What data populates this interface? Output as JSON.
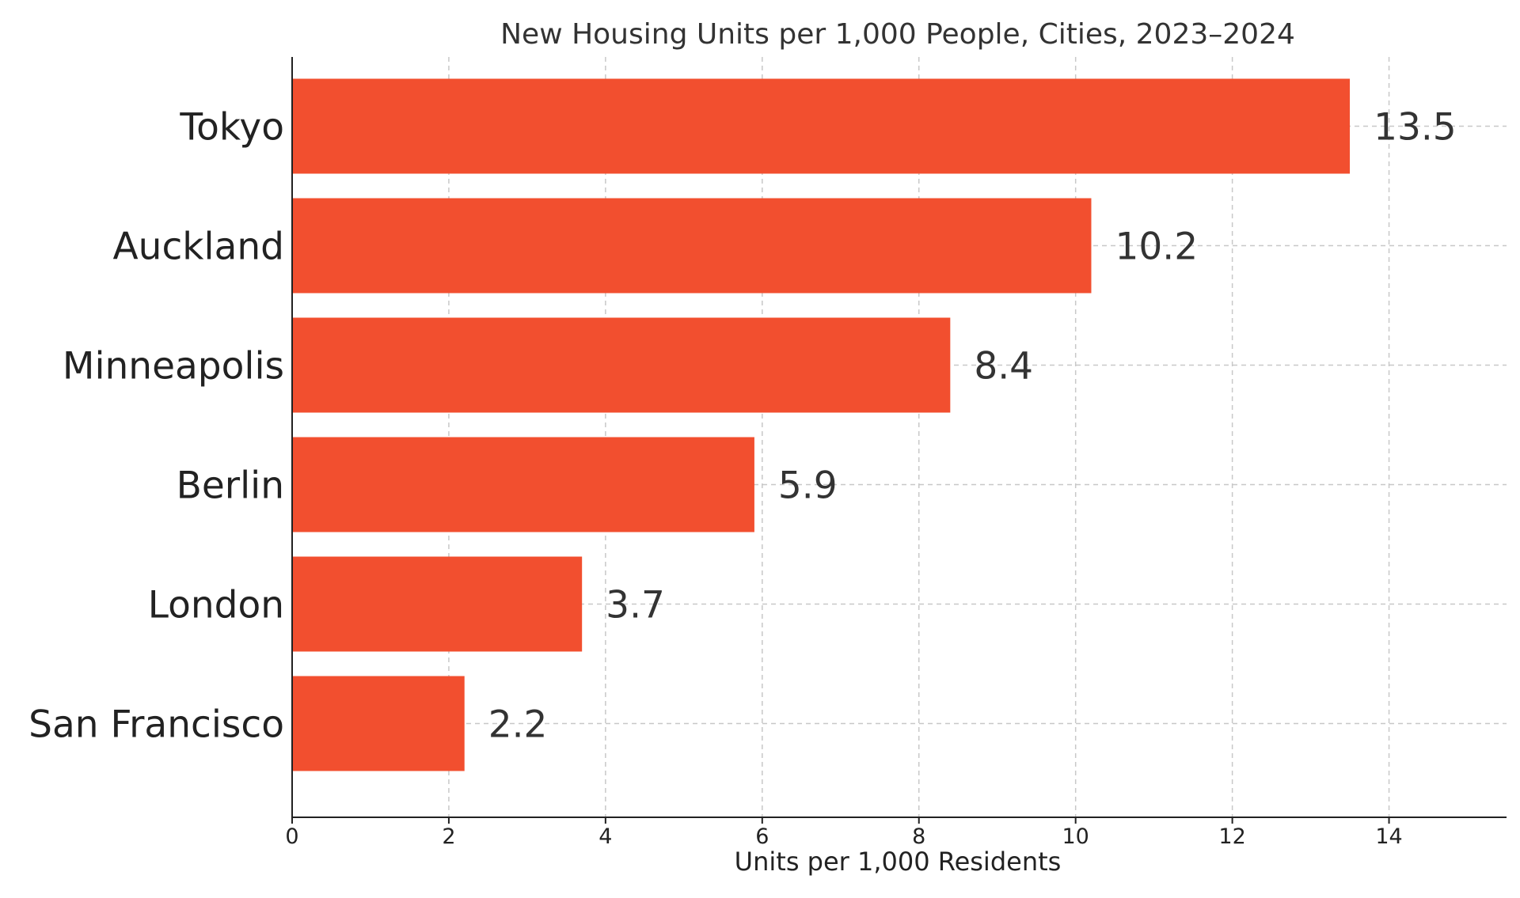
{
  "chart_data": {
    "type": "bar",
    "orientation": "horizontal",
    "title": "New Housing Units per 1,000 People, Cities, 2023–2024",
    "xlabel": "Units per 1,000 Residents",
    "ylabel": "",
    "categories": [
      "Tokyo",
      "Auckland",
      "Minneapolis",
      "Berlin",
      "London",
      "San Francisco"
    ],
    "values": [
      13.5,
      10.2,
      8.4,
      5.9,
      3.7,
      2.2
    ],
    "value_labels": [
      "13.5",
      "10.2",
      "8.4",
      "5.9",
      "3.7",
      "2.2"
    ],
    "xlim": [
      0,
      15.5
    ],
    "xticks": [
      0,
      2,
      4,
      6,
      8,
      10,
      12,
      14
    ],
    "xtick_labels": [
      "0",
      "2",
      "4",
      "6",
      "8",
      "10",
      "12",
      "14"
    ],
    "grid": true,
    "legend": "none",
    "bar_color": "#f24f2f"
  }
}
